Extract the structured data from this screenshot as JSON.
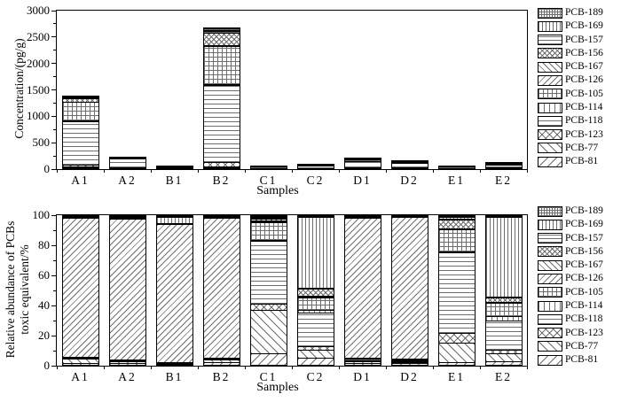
{
  "legend_entries": [
    {
      "label": "PCB-189",
      "pattern": "grid-fine"
    },
    {
      "label": "PCB-169",
      "pattern": "vlines-fine"
    },
    {
      "label": "PCB-157",
      "pattern": "hlines-fine"
    },
    {
      "label": "PCB-156",
      "pattern": "xhatch-fine"
    },
    {
      "label": "PCB-167",
      "pattern": "diagdown-fine"
    },
    {
      "label": "PCB-126",
      "pattern": "diagup-fine"
    },
    {
      "label": "PCB-105",
      "pattern": "grid-coarse"
    },
    {
      "label": "PCB-114",
      "pattern": "vlines-coarse"
    },
    {
      "label": "PCB-118",
      "pattern": "hlines-coarse"
    },
    {
      "label": "PCB-123",
      "pattern": "xhatch-coarse"
    },
    {
      "label": "PCB-77",
      "pattern": "diagdown-coarse"
    },
    {
      "label": "PCB-81",
      "pattern": "diagup-coarse"
    }
  ],
  "chart_data": [
    {
      "type": "bar",
      "subtype": "stacked-vertical",
      "title": "",
      "xlabel": "Samples",
      "ylabel": "Concentration/(pg/g)",
      "ylim": [
        0,
        3000
      ],
      "yticks": [
        0,
        500,
        1000,
        1500,
        2000,
        2500,
        3000
      ],
      "grid": false,
      "legend_position": "right-outside",
      "categories": [
        "A1",
        "A2",
        "B1",
        "B2",
        "C1",
        "C2",
        "D1",
        "D2",
        "E1",
        "E2"
      ],
      "stack_order": "bottom-to-top",
      "series": [
        {
          "name": "PCB-81",
          "values": [
            15,
            5,
            2,
            15,
            5,
            4,
            5,
            4,
            3,
            3
          ]
        },
        {
          "name": "PCB-77",
          "values": [
            15,
            5,
            2,
            15,
            18,
            8,
            5,
            4,
            10,
            7
          ]
        },
        {
          "name": "PCB-123",
          "values": [
            45,
            10,
            4,
            90,
            3,
            3,
            8,
            6,
            5,
            4
          ]
        },
        {
          "name": "PCB-118",
          "values": [
            840,
            185,
            35,
            1480,
            22,
            50,
            140,
            110,
            35,
            70
          ]
        },
        {
          "name": "PCB-114",
          "values": [
            10,
            3,
            2,
            15,
            1,
            2,
            8,
            5,
            1,
            3
          ]
        },
        {
          "name": "PCB-105",
          "values": [
            355,
            15,
            8,
            730,
            8,
            12,
            30,
            22,
            10,
            25
          ]
        },
        {
          "name": "PCB-126",
          "values": [
            8,
            2,
            1,
            10,
            1,
            1,
            2,
            1,
            1,
            1
          ]
        },
        {
          "name": "PCB-167",
          "values": [
            8,
            2,
            1,
            10,
            1,
            1,
            2,
            1,
            1,
            1
          ]
        },
        {
          "name": "PCB-156",
          "values": [
            60,
            5,
            3,
            230,
            2,
            4,
            8,
            6,
            2,
            6
          ]
        },
        {
          "name": "PCB-157",
          "values": [
            12,
            1,
            1,
            30,
            1,
            2,
            2,
            2,
            1,
            2
          ]
        },
        {
          "name": "PCB-169",
          "values": [
            10,
            1,
            1,
            30,
            1,
            4,
            3,
            2,
            1,
            4
          ]
        },
        {
          "name": "PCB-189",
          "values": [
            12,
            1,
            1,
            35,
            1,
            2,
            2,
            2,
            1,
            2
          ]
        }
      ],
      "approx_totals": [
        1390,
        235,
        61,
        2690,
        64,
        93,
        215,
        165,
        71,
        128
      ]
    },
    {
      "type": "bar",
      "subtype": "stacked-vertical-100pct",
      "title": "",
      "xlabel": "Samples",
      "ylabel": "Relative abundance of PCBs toxic equivalent/%",
      "ylabel_lines": [
        "Relative abundance of PCBs",
        "toxic equivalent/%"
      ],
      "ylim": [
        0,
        100
      ],
      "yticks": [
        0,
        20,
        40,
        60,
        80,
        100
      ],
      "grid": false,
      "legend_position": "right-outside",
      "categories": [
        "A1",
        "A2",
        "B1",
        "B2",
        "C1",
        "C2",
        "D1",
        "D2",
        "E1",
        "E2"
      ],
      "stack_order": "bottom-to-top",
      "series": [
        {
          "name": "PCB-81",
          "values": [
            1,
            1,
            0.5,
            1.5,
            8,
            4.5,
            1,
            1,
            2,
            2.5
          ]
        },
        {
          "name": "PCB-77",
          "values": [
            3,
            1.5,
            0.5,
            2,
            29,
            5.5,
            1.5,
            1,
            13,
            5.5
          ]
        },
        {
          "name": "PCB-123",
          "values": [
            0.5,
            0.3,
            0.2,
            0.3,
            4,
            2.5,
            0.4,
            0.3,
            6.5,
            2
          ]
        },
        {
          "name": "PCB-118",
          "values": [
            0.5,
            0.4,
            0.3,
            0.4,
            42.5,
            22.5,
            1,
            0.8,
            54,
            20
          ]
        },
        {
          "name": "PCB-114",
          "values": [
            0.2,
            0.2,
            0.2,
            0.2,
            0.5,
            2,
            0.3,
            0.3,
            0.5,
            3
          ]
        },
        {
          "name": "PCB-105",
          "values": [
            0.3,
            0.3,
            0.3,
            0.3,
            12,
            8,
            0.5,
            0.5,
            15,
            8.5
          ]
        },
        {
          "name": "PCB-126",
          "values": [
            93.5,
            94.7,
            92.5,
            94.0,
            0.5,
            1,
            94.3,
            95.2,
            0.3,
            0.5
          ]
        },
        {
          "name": "PCB-167",
          "values": [
            0.2,
            0.3,
            0.3,
            0.3,
            0.5,
            0.5,
            0.3,
            0.3,
            0.3,
            0.5
          ]
        },
        {
          "name": "PCB-156",
          "values": [
            0.3,
            0.4,
            0.4,
            0.4,
            1.5,
            4.5,
            0.3,
            0.3,
            6,
            3
          ]
        },
        {
          "name": "PCB-157",
          "values": [
            0.2,
            0.2,
            0.3,
            0.2,
            0.5,
            0.5,
            0.2,
            0.1,
            0.4,
            0.5
          ]
        },
        {
          "name": "PCB-169",
          "values": [
            0.2,
            0.3,
            4,
            0.2,
            0.5,
            48,
            0.1,
            0.1,
            1.5,
            53.5
          ]
        },
        {
          "name": "PCB-189",
          "values": [
            0.1,
            0.4,
            0.5,
            0.2,
            0.5,
            0.5,
            0.1,
            0.1,
            0.5,
            0.5
          ]
        }
      ]
    }
  ]
}
